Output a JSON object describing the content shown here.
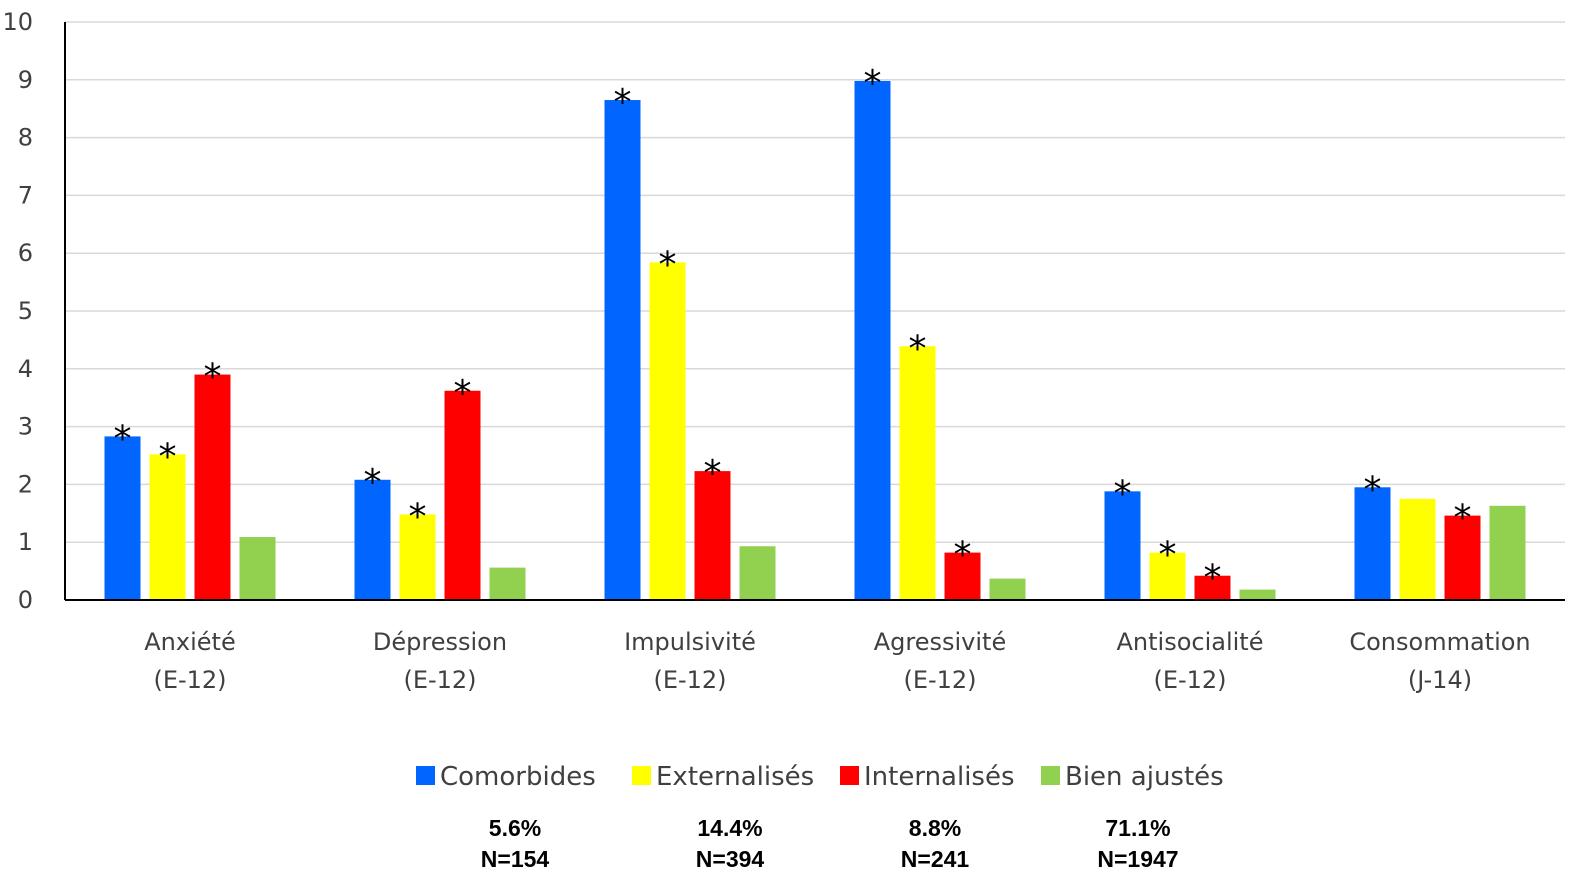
{
  "chart_data": {
    "type": "bar",
    "categories": [
      [
        "Anxiété",
        "(E-12)"
      ],
      [
        "Dépression",
        "(E-12)"
      ],
      [
        "Impulsivité",
        "(E-12)"
      ],
      [
        "Agressivité",
        "(E-12)"
      ],
      [
        "Antisocialité",
        "(E-12)"
      ],
      [
        "Consommation",
        "(J-14)"
      ]
    ],
    "series": [
      {
        "name": "Comorbides",
        "color": "#0066ff",
        "values": [
          2.83,
          2.08,
          8.65,
          8.98,
          1.88,
          1.95
        ],
        "significant": [
          true,
          true,
          true,
          true,
          true,
          true
        ],
        "percent": "5.6%",
        "n": "N=154"
      },
      {
        "name": "Externalisés",
        "color": "#ffff00",
        "values": [
          2.52,
          1.48,
          5.84,
          4.39,
          0.82,
          1.75
        ],
        "significant": [
          true,
          true,
          true,
          true,
          true,
          false
        ],
        "percent": "14.4%",
        "n": "N=394"
      },
      {
        "name": "Internalisés",
        "color": "#ff0000",
        "values": [
          3.9,
          3.62,
          2.23,
          0.82,
          0.42,
          1.46
        ],
        "significant": [
          true,
          true,
          true,
          true,
          true,
          true
        ],
        "percent": "8.8%",
        "n": "N=241"
      },
      {
        "name": "Bien ajustés",
        "color": "#92d050",
        "values": [
          1.09,
          0.56,
          0.93,
          0.37,
          0.18,
          1.63
        ],
        "significant": [
          false,
          false,
          false,
          false,
          false,
          false
        ],
        "percent": "71.1%",
        "n": "N=1947"
      }
    ],
    "significance_marker": "*",
    "title": "",
    "xlabel": "",
    "ylabel": "",
    "ylim": [
      0,
      10
    ],
    "yticks": [
      "0",
      "1",
      "2",
      "3",
      "4",
      "5",
      "6",
      "7",
      "8",
      "9",
      "10"
    ],
    "grid": true,
    "legend_position": "bottom"
  }
}
